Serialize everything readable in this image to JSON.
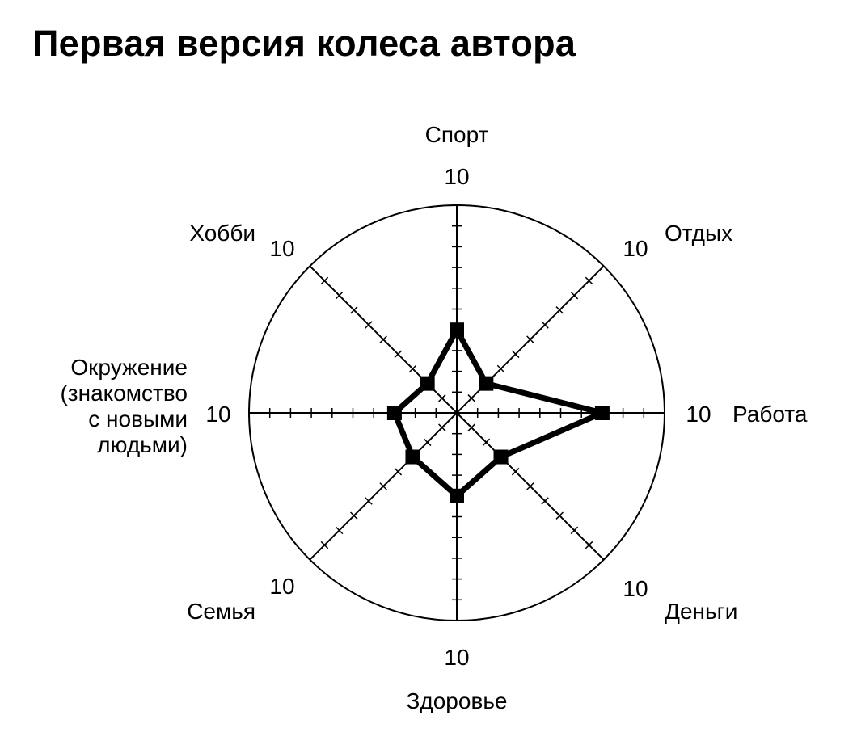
{
  "title": "Первая версия колеса автора",
  "chart_data": {
    "type": "radar",
    "scale_max": 10,
    "ticks_per_axis": 10,
    "grid": false,
    "axes": [
      {
        "name": "Спорт",
        "lines": [
          "Спорт"
        ],
        "max_label": "10",
        "value": 4
      },
      {
        "name": "Отдых",
        "lines": [
          "Отдых"
        ],
        "max_label": "10",
        "value": 2
      },
      {
        "name": "Работа",
        "lines": [
          "Работа"
        ],
        "max_label": "10",
        "value": 7
      },
      {
        "name": "Деньги",
        "lines": [
          "Деньги"
        ],
        "max_label": "10",
        "value": 3
      },
      {
        "name": "Здоровье",
        "lines": [
          "Здоровье"
        ],
        "max_label": "10",
        "value": 4
      },
      {
        "name": "Семья",
        "lines": [
          "Семья"
        ],
        "max_label": "10",
        "value": 3
      },
      {
        "name": "Окружение (знакомство с новыми людьми)",
        "lines": [
          "Окружение",
          "(знакомство",
          "с новыми",
          "людьми)"
        ],
        "max_label": "10",
        "value": 3
      },
      {
        "name": "Хобби",
        "lines": [
          "Хобби"
        ],
        "max_label": "10",
        "value": 2
      }
    ]
  }
}
